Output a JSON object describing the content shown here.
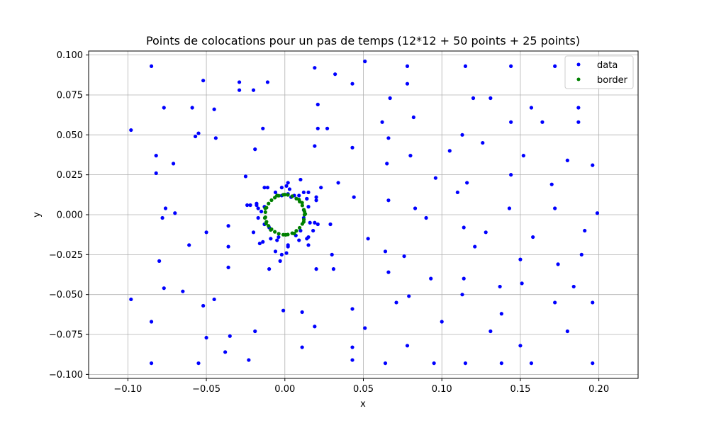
{
  "chart_data": {
    "type": "scatter",
    "title": "Points de colocations pour un pas de temps (12*12 + 50 points + 25 points)",
    "xlabel": "x",
    "ylabel": "y",
    "xlim": [
      -0.125,
      0.225
    ],
    "ylim": [
      -0.1025,
      0.1025
    ],
    "grid": true,
    "legend_position": "top-right",
    "x_ticks": [
      -0.1,
      -0.05,
      0.0,
      0.05,
      0.1,
      0.15,
      0.2
    ],
    "x_tick_labels": [
      "−0.10",
      "−0.05",
      "0.00",
      "0.05",
      "0.10",
      "0.15",
      "0.20"
    ],
    "y_ticks": [
      -0.1,
      -0.075,
      -0.05,
      -0.025,
      0.0,
      0.025,
      0.05,
      0.075,
      0.1
    ],
    "y_tick_labels": [
      "−0.100",
      "−0.075",
      "−0.050",
      "−0.025",
      "0.000",
      "0.025",
      "0.050",
      "0.075",
      "0.100"
    ],
    "series": [
      {
        "name": "data",
        "color": "#0000ff",
        "points": [
          [
            -0.085,
            0.093
          ],
          [
            -0.098,
            0.053
          ],
          [
            -0.082,
            0.037
          ],
          [
            -0.082,
            0.026
          ],
          [
            -0.077,
            0.067
          ],
          [
            -0.071,
            0.032
          ],
          [
            -0.059,
            0.067
          ],
          [
            -0.057,
            0.049
          ],
          [
            -0.055,
            0.051
          ],
          [
            -0.052,
            0.084
          ],
          [
            -0.045,
            0.066
          ],
          [
            -0.044,
            0.048
          ],
          [
            -0.029,
            0.083
          ],
          [
            -0.029,
            0.078
          ],
          [
            -0.02,
            0.078
          ],
          [
            -0.011,
            0.083
          ],
          [
            -0.014,
            0.054
          ],
          [
            -0.019,
            0.041
          ],
          [
            -0.025,
            0.024
          ],
          [
            -0.076,
            0.004
          ],
          [
            -0.07,
            0.001
          ],
          [
            -0.078,
            -0.002
          ],
          [
            -0.061,
            -0.019
          ],
          [
            -0.05,
            -0.011
          ],
          [
            -0.036,
            -0.007
          ],
          [
            -0.036,
            -0.02
          ],
          [
            -0.08,
            -0.029
          ],
          [
            -0.077,
            -0.046
          ],
          [
            -0.065,
            -0.048
          ],
          [
            -0.098,
            -0.053
          ],
          [
            -0.052,
            -0.057
          ],
          [
            -0.045,
            -0.053
          ],
          [
            -0.036,
            -0.033
          ],
          [
            -0.085,
            -0.067
          ],
          [
            -0.05,
            -0.077
          ],
          [
            -0.035,
            -0.076
          ],
          [
            -0.038,
            -0.086
          ],
          [
            -0.085,
            -0.093
          ],
          [
            -0.055,
            -0.093
          ],
          [
            -0.023,
            -0.091
          ],
          [
            -0.019,
            -0.073
          ],
          [
            -0.01,
            -0.034
          ],
          [
            -0.001,
            -0.06
          ],
          [
            0.011,
            -0.061
          ],
          [
            0.019,
            -0.07
          ],
          [
            0.011,
            -0.083
          ],
          [
            0.043,
            -0.059
          ],
          [
            0.043,
            -0.083
          ],
          [
            0.043,
            -0.091
          ],
          [
            0.051,
            -0.071
          ],
          [
            0.064,
            -0.093
          ],
          [
            0.071,
            -0.055
          ],
          [
            0.066,
            -0.036
          ],
          [
            0.064,
            -0.023
          ],
          [
            0.053,
            -0.015
          ],
          [
            0.03,
            -0.025
          ],
          [
            0.031,
            -0.034
          ],
          [
            0.02,
            -0.034
          ],
          [
            0.019,
            0.092
          ],
          [
            0.032,
            0.088
          ],
          [
            0.043,
            0.082
          ],
          [
            0.051,
            0.096
          ],
          [
            0.021,
            0.069
          ],
          [
            0.021,
            0.054
          ],
          [
            0.027,
            0.054
          ],
          [
            0.019,
            0.043
          ],
          [
            0.043,
            0.042
          ],
          [
            0.034,
            0.02
          ],
          [
            0.044,
            0.011
          ],
          [
            0.023,
            0.017
          ],
          [
            0.029,
            -0.006
          ],
          [
            0.062,
            0.058
          ],
          [
            0.067,
            0.073
          ],
          [
            0.066,
            0.048
          ],
          [
            0.065,
            0.032
          ],
          [
            0.066,
            0.009
          ],
          [
            0.078,
            0.093
          ],
          [
            0.078,
            0.082
          ],
          [
            0.082,
            0.061
          ],
          [
            0.08,
            0.037
          ],
          [
            0.083,
            0.004
          ],
          [
            0.096,
            0.023
          ],
          [
            0.09,
            -0.002
          ],
          [
            0.076,
            -0.026
          ],
          [
            0.079,
            -0.051
          ],
          [
            0.093,
            -0.04
          ],
          [
            0.078,
            -0.082
          ],
          [
            0.095,
            -0.093
          ],
          [
            0.1,
            -0.067
          ],
          [
            0.113,
            -0.05
          ],
          [
            0.114,
            -0.04
          ],
          [
            0.114,
            -0.008
          ],
          [
            0.121,
            -0.02
          ],
          [
            0.128,
            -0.011
          ],
          [
            0.115,
            -0.093
          ],
          [
            0.131,
            -0.073
          ],
          [
            0.138,
            -0.062
          ],
          [
            0.137,
            -0.045
          ],
          [
            0.138,
            -0.093
          ],
          [
            0.15,
            -0.028
          ],
          [
            0.151,
            -0.043
          ],
          [
            0.15,
            -0.082
          ],
          [
            0.157,
            -0.093
          ],
          [
            0.172,
            -0.055
          ],
          [
            0.174,
            -0.031
          ],
          [
            0.18,
            -0.073
          ],
          [
            0.184,
            -0.045
          ],
          [
            0.189,
            -0.025
          ],
          [
            0.191,
            -0.01
          ],
          [
            0.196,
            -0.055
          ],
          [
            0.196,
            -0.093
          ],
          [
            0.199,
            0.001
          ],
          [
            0.196,
            0.031
          ],
          [
            0.18,
            0.034
          ],
          [
            0.17,
            0.019
          ],
          [
            0.172,
            0.004
          ],
          [
            0.158,
            -0.014
          ],
          [
            0.143,
            0.004
          ],
          [
            0.144,
            0.025
          ],
          [
            0.152,
            0.037
          ],
          [
            0.144,
            0.058
          ],
          [
            0.157,
            0.067
          ],
          [
            0.164,
            0.058
          ],
          [
            0.172,
            0.093
          ],
          [
            0.187,
            0.067
          ],
          [
            0.187,
            0.058
          ],
          [
            0.144,
            0.093
          ],
          [
            0.131,
            0.073
          ],
          [
            0.126,
            0.045
          ],
          [
            0.115,
            0.093
          ],
          [
            0.12,
            0.073
          ],
          [
            0.113,
            0.05
          ],
          [
            0.105,
            0.04
          ],
          [
            0.11,
            0.014
          ],
          [
            0.116,
            0.02
          ],
          [
            0.002,
            0.02
          ],
          [
            0.01,
            0.022
          ],
          [
            0.009,
            0.012
          ],
          [
            0.012,
            0.014
          ],
          [
            0.014,
            0.01
          ],
          [
            0.015,
            0.014
          ],
          [
            0.02,
            0.011
          ],
          [
            0.02,
            0.009
          ],
          [
            -0.002,
            0.017
          ],
          [
            0.001,
            0.018
          ],
          [
            0.003,
            0.016
          ],
          [
            -0.011,
            0.017
          ],
          [
            -0.013,
            0.017
          ],
          [
            -0.006,
            0.014
          ],
          [
            -0.005,
            0.012
          ],
          [
            -0.018,
            0.007
          ],
          [
            -0.018,
            0.006
          ],
          [
            -0.013,
            0.005
          ],
          [
            -0.017,
            0.004
          ],
          [
            -0.022,
            0.006
          ],
          [
            -0.024,
            0.006
          ],
          [
            -0.015,
            0.002
          ],
          [
            -0.017,
            -0.002
          ],
          [
            -0.013,
            -0.006
          ],
          [
            -0.02,
            -0.011
          ],
          [
            -0.014,
            -0.017
          ],
          [
            -0.016,
            -0.018
          ],
          [
            -0.009,
            -0.015
          ],
          [
            -0.005,
            -0.016
          ],
          [
            -0.004,
            -0.014
          ],
          [
            -0.006,
            -0.023
          ],
          [
            -0.002,
            -0.025
          ],
          [
            0.002,
            -0.019
          ],
          [
            0.001,
            -0.024
          ],
          [
            0.007,
            -0.013
          ],
          [
            0.009,
            -0.016
          ],
          [
            0.014,
            -0.015
          ],
          [
            0.015,
            -0.014
          ],
          [
            0.015,
            -0.019
          ],
          [
            0.016,
            -0.005
          ],
          [
            0.019,
            -0.005
          ],
          [
            0.018,
            -0.01
          ],
          [
            0.021,
            -0.006
          ],
          [
            0.002,
            -0.02
          ],
          [
            -0.003,
            -0.029
          ],
          [
            0.01,
            -0.01
          ],
          [
            0.012,
            0.003
          ],
          [
            0.012,
            -0.002
          ],
          [
            0.015,
            0.005
          ],
          [
            0.014,
            0.01
          ],
          [
            0.002,
            0.013
          ],
          [
            -0.002,
            0.012
          ],
          [
            0.004,
            0.011
          ],
          [
            0.006,
            0.012
          ],
          [
            -0.01,
            -0.008
          ]
        ]
      },
      {
        "name": "border",
        "color": "#008000",
        "points": [
          [
            0.0125,
            0.0
          ],
          [
            0.0121,
            0.0031
          ],
          [
            0.0111,
            0.0058
          ],
          [
            0.0094,
            0.0082
          ],
          [
            0.0073,
            0.0101
          ],
          [
            0.0047,
            0.0116
          ],
          [
            0.0019,
            0.0124
          ],
          [
            -0.001,
            0.0125
          ],
          [
            -0.0039,
            0.0119
          ],
          [
            -0.0064,
            0.0107
          ],
          [
            -0.0085,
            0.0091
          ],
          [
            -0.0104,
            0.007
          ],
          [
            -0.0117,
            0.0044
          ],
          [
            -0.0124,
            0.0016
          ],
          [
            -0.0124,
            -0.0016
          ],
          [
            -0.0117,
            -0.0044
          ],
          [
            -0.0104,
            -0.007
          ],
          [
            -0.0085,
            -0.0091
          ],
          [
            -0.0064,
            -0.0107
          ],
          [
            -0.0039,
            -0.0119
          ],
          [
            -0.001,
            -0.0125
          ],
          [
            0.0019,
            -0.0124
          ],
          [
            0.0047,
            -0.0116
          ],
          [
            0.0073,
            -0.0101
          ],
          [
            0.0094,
            -0.0082
          ],
          [
            0.0111,
            -0.0058
          ],
          [
            0.0121,
            -0.0031
          ],
          [
            0.013,
            0.0005
          ],
          [
            0.0125,
            0.002
          ],
          [
            0.011,
            0.0075
          ],
          [
            -0.0125,
            0.004
          ],
          [
            -0.0128,
            -0.002
          ],
          [
            0.0,
            0.0126
          ],
          [
            0.0005,
            -0.0126
          ],
          [
            0.012,
            -0.0045
          ],
          [
            0.009,
            0.0095
          ],
          [
            -0.009,
            -0.0095
          ],
          [
            -0.005,
            0.012
          ],
          [
            0.006,
            -0.0118
          ],
          [
            -0.012,
            -0.0055
          ]
        ]
      }
    ]
  }
}
